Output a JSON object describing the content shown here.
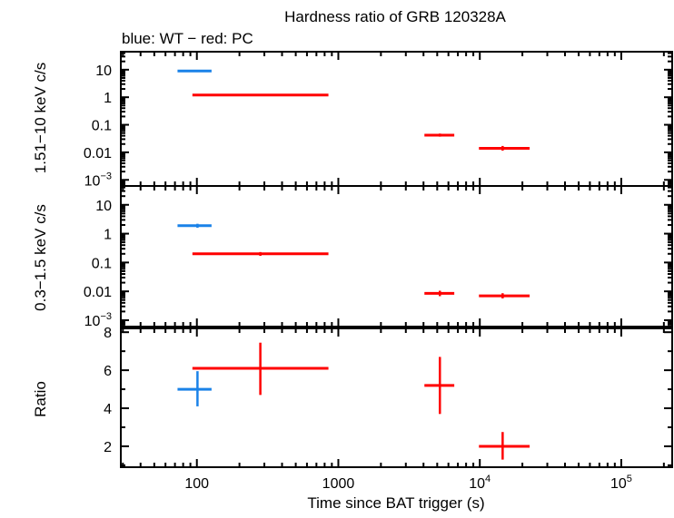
{
  "chart_data": {
    "type": "scatter",
    "title": "Hardness ratio of GRB 120328A",
    "subtitle": "blue: WT − red: PC",
    "xlabel": "Time since BAT trigger (s)",
    "xscale": "log",
    "xlim": [
      29,
      229000
    ],
    "xticks": [
      {
        "value": 100,
        "label": "100"
      },
      {
        "value": 1000,
        "label": "1000"
      },
      {
        "value": 10000,
        "label": "10",
        "sup": "4"
      },
      {
        "value": 100000,
        "label": "10",
        "sup": "5"
      }
    ],
    "colors": {
      "WT": "#1a82e8",
      "PC": "#ff0000"
    },
    "panels": [
      {
        "ylabel": "1.51−10 keV c/s",
        "yscale": "log",
        "ylim": [
          0.0006,
          45
        ],
        "yticks": [
          {
            "value": 10,
            "label": "10"
          },
          {
            "value": 1,
            "label": "1"
          },
          {
            "value": 0.1,
            "label": "0.1"
          },
          {
            "value": 0.01,
            "label": "0.01"
          },
          {
            "value": 0.001,
            "label": "10",
            "sup": "−3"
          }
        ],
        "points": [
          {
            "mode": "WT",
            "x": 101,
            "xlo": 73,
            "xhi": 127,
            "y": 9,
            "ylo": 8.4,
            "yhi": 9.6
          },
          {
            "mode": "PC",
            "x": 281,
            "xlo": 93,
            "xhi": 851,
            "y": 1.2,
            "ylo": 1.1,
            "yhi": 1.3
          },
          {
            "mode": "PC",
            "x": 5220,
            "xlo": 4060,
            "xhi": 6600,
            "y": 0.042,
            "ylo": 0.037,
            "yhi": 0.048
          },
          {
            "mode": "PC",
            "x": 14500,
            "xlo": 9860,
            "xhi": 22500,
            "y": 0.014,
            "ylo": 0.0115,
            "yhi": 0.017
          }
        ]
      },
      {
        "ylabel": "0.3−1.5 keV c/s",
        "yscale": "log",
        "ylim": [
          0.0006,
          45
        ],
        "yticks": [
          {
            "value": 10,
            "label": "10"
          },
          {
            "value": 1,
            "label": "1"
          },
          {
            "value": 0.1,
            "label": "0.1"
          },
          {
            "value": 0.01,
            "label": "0.01"
          },
          {
            "value": 0.001,
            "label": "10",
            "sup": "−3"
          }
        ],
        "points": [
          {
            "mode": "WT",
            "x": 101,
            "xlo": 73,
            "xhi": 127,
            "y": 1.9,
            "ylo": 1.6,
            "yhi": 2.2
          },
          {
            "mode": "PC",
            "x": 281,
            "xlo": 93,
            "xhi": 851,
            "y": 0.2,
            "ylo": 0.17,
            "yhi": 0.23
          },
          {
            "mode": "PC",
            "x": 5220,
            "xlo": 4060,
            "xhi": 6600,
            "y": 0.0085,
            "ylo": 0.0068,
            "yhi": 0.0105
          },
          {
            "mode": "PC",
            "x": 14500,
            "xlo": 9860,
            "xhi": 22500,
            "y": 0.007,
            "ylo": 0.0057,
            "yhi": 0.0086
          }
        ]
      },
      {
        "ylabel": "Ratio",
        "yscale": "linear",
        "ylim": [
          0.9,
          8.2
        ],
        "yticks": [
          {
            "value": 8,
            "label": "8"
          },
          {
            "value": 6,
            "label": "6"
          },
          {
            "value": 4,
            "label": "4"
          },
          {
            "value": 2,
            "label": "2"
          }
        ],
        "points": [
          {
            "mode": "WT",
            "x": 101,
            "xlo": 73,
            "xhi": 127,
            "y": 5.0,
            "ylo": 4.1,
            "yhi": 5.95
          },
          {
            "mode": "PC",
            "x": 281,
            "xlo": 93,
            "xhi": 851,
            "y": 6.1,
            "ylo": 4.7,
            "yhi": 7.45
          },
          {
            "mode": "PC",
            "x": 5220,
            "xlo": 4060,
            "xhi": 6600,
            "y": 5.2,
            "ylo": 3.7,
            "yhi": 6.7
          },
          {
            "mode": "PC",
            "x": 14500,
            "xlo": 9860,
            "xhi": 22500,
            "y": 2.0,
            "ylo": 1.3,
            "yhi": 2.75
          }
        ]
      }
    ]
  }
}
